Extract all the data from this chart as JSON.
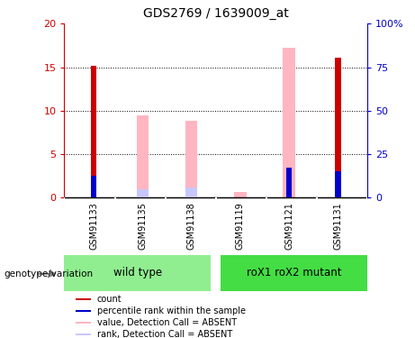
{
  "title": "GDS2769 / 1639009_at",
  "samples": [
    "GSM91133",
    "GSM91135",
    "GSM91138",
    "GSM91119",
    "GSM91121",
    "GSM91131"
  ],
  "red_count": [
    15.2,
    0,
    0,
    0,
    0,
    16.1
  ],
  "blue_rank": [
    2.5,
    0,
    0,
    0,
    3.5,
    3.0
  ],
  "pink_value": [
    0,
    9.5,
    8.8,
    0.7,
    17.2,
    0
  ],
  "lavender_rank": [
    0,
    1.0,
    1.2,
    0,
    0,
    0
  ],
  "ylim_left": [
    0,
    20
  ],
  "ylim_right": [
    0,
    100
  ],
  "yticks_left": [
    0,
    5,
    10,
    15,
    20
  ],
  "ytick_labels_left": [
    "0",
    "5",
    "10",
    "15",
    "20"
  ],
  "yticks_right": [
    0,
    25,
    50,
    75,
    100
  ],
  "ytick_labels_right": [
    "0",
    "25",
    "50",
    "75",
    "100%"
  ],
  "left_color": "#cc0000",
  "right_color": "#0000cc",
  "pink_color": "#ffb6c1",
  "lavender_color": "#c8c8ff",
  "legend_items": [
    {
      "color": "#cc0000",
      "label": "count"
    },
    {
      "color": "#0000cc",
      "label": "percentile rank within the sample"
    },
    {
      "color": "#ffb6c1",
      "label": "value, Detection Call = ABSENT"
    },
    {
      "color": "#c8c8ff",
      "label": "rank, Detection Call = ABSENT"
    }
  ],
  "genotype_label": "genotype/variation",
  "wt_label": "wild type",
  "mut_label": "roX1 roX2 mutant",
  "wt_color": "#90ee90",
  "mut_color": "#44dd44",
  "label_box_color": "#c8c8c8",
  "pink_bar_width": 0.25,
  "red_bar_width": 0.12
}
